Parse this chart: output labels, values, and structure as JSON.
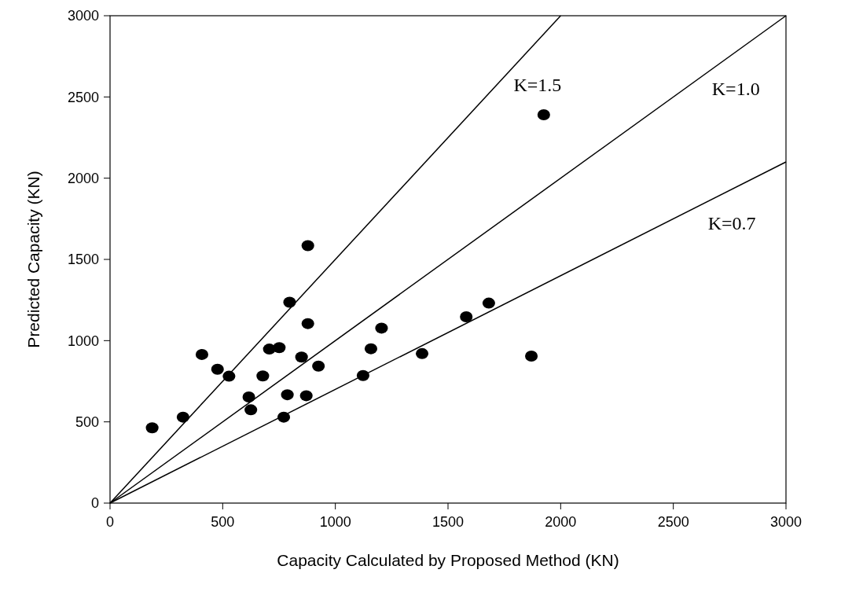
{
  "chart_data": {
    "type": "scatter",
    "xlabel": "Capacity Calculated by Proposed Method (KN)",
    "ylabel": "Predicted Capacity (KN)",
    "xlim": [
      0,
      3000
    ],
    "ylim": [
      0,
      3000
    ],
    "xticks": [
      0,
      500,
      1000,
      1500,
      2000,
      2500,
      3000
    ],
    "yticks": [
      0,
      500,
      1000,
      1500,
      2000,
      2500,
      3000
    ],
    "grid": false,
    "marker": "circle",
    "series": [
      {
        "color": "#000000",
        "x": [
          187,
          324,
          408,
          477,
          528,
          616,
          625,
          678,
          707,
          751,
          771,
          787,
          797,
          850,
          871,
          878,
          878,
          925,
          1123,
          1158,
          1205,
          1385,
          1925,
          1581,
          1681,
          1870
        ],
        "values": [
          463,
          529,
          915,
          824,
          781,
          653,
          574,
          783,
          948,
          957,
          529,
          667,
          1236,
          899,
          661,
          1585,
          1105,
          843,
          785,
          950,
          1077,
          920,
          2390,
          1147,
          1231,
          905
        ]
      },
      {
        "type": "line",
        "name": "K=1.5",
        "color": "#000000",
        "x": [
          0,
          2000
        ],
        "values": [
          0,
          3000
        ],
        "marker": "none",
        "line_style": "solid"
      },
      {
        "type": "line",
        "name": "K=1.0",
        "color": "#000000",
        "x": [
          0,
          3000
        ],
        "values": [
          0,
          3000
        ],
        "marker": "none",
        "line_style": "solid"
      },
      {
        "type": "line",
        "name": "K=0.7",
        "color": "#000000",
        "x": [
          0,
          3000
        ],
        "values": [
          0,
          2100
        ],
        "marker": "none",
        "line_style": "solid"
      }
    ]
  }
}
